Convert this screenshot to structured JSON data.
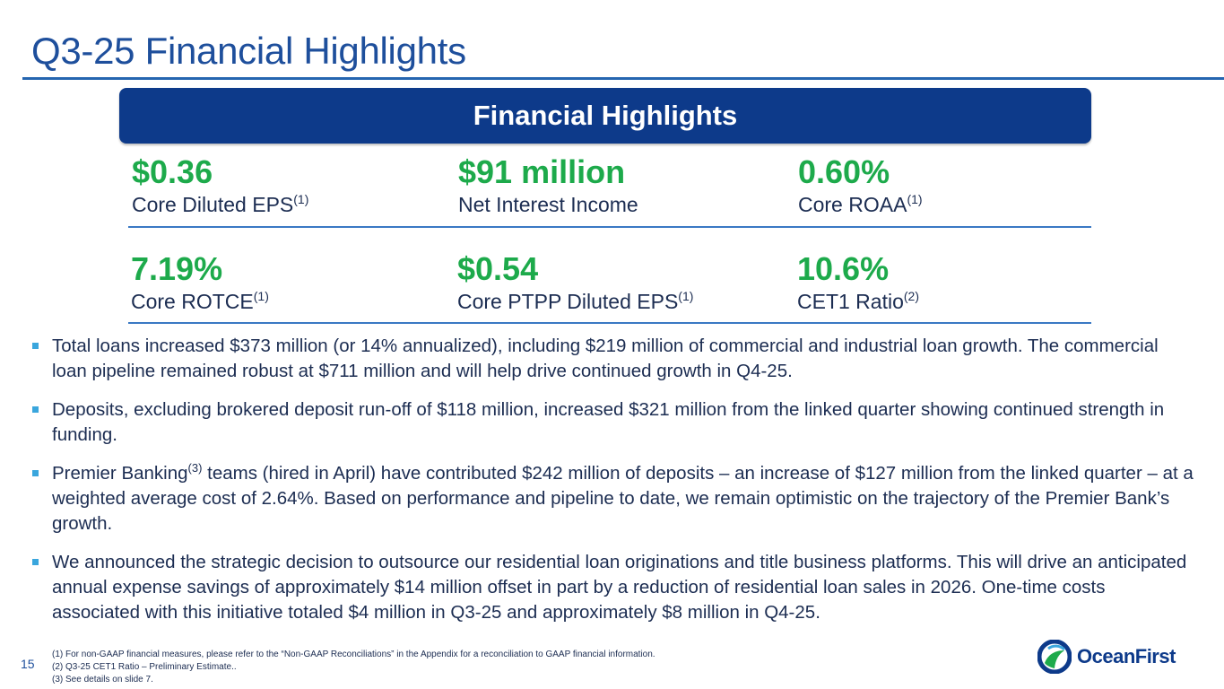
{
  "title": "Q3-25 Financial Highlights",
  "banner": "Financial Highlights",
  "metrics": [
    {
      "value": "$0.36",
      "label": "Core Diluted EPS",
      "sup": "(1)"
    },
    {
      "value": "$91 million",
      "label": "Net Interest Income",
      "sup": ""
    },
    {
      "value": "0.60%",
      "label": "Core ROAA",
      "sup": "(1)"
    },
    {
      "value": "7.19%",
      "label": "Core ROTCE",
      "sup": "(1)"
    },
    {
      "value": "$0.54",
      "label": "Core PTPP Diluted EPS",
      "sup": "(1)"
    },
    {
      "value": "10.6%",
      "label": "CET1 Ratio",
      "sup": "(2)"
    }
  ],
  "bullets": {
    "b1": "Total loans increased $373 million (or 14% annualized), including $219 million of commercial and industrial loan growth. The commercial loan pipeline remained robust at $711 million and will help drive continued growth in Q4-25.",
    "b2": "Deposits, excluding brokered deposit run-off of $118 million, increased $321 million from the linked quarter showing continued strength in funding.",
    "b3_pre": "Premier Banking",
    "b3_sup": "(3)",
    "b3_post": " teams (hired in April) have contributed $242 million of deposits – an increase of $127 million from the linked quarter – at a weighted average cost of 2.64%. Based on performance and pipeline to date, we remain optimistic on the trajectory of the Premier Bank’s growth.",
    "b4": "We announced the strategic decision to outsource our residential loan originations and title business platforms. This will drive an anticipated annual expense savings of approximately $14 million offset in part by a reduction of residential loan sales in 2026. One-time costs associated with this initiative totaled $4 million in Q3-25 and approximately $8 million in Q4-25."
  },
  "page_number": "15",
  "footnotes": [
    "(1) For non-GAAP financial measures, please refer to the “Non-GAAP Reconciliations” in the Appendix for a reconciliation to GAAP financial information.",
    "(2) Q3-25 CET1 Ratio – Preliminary Estimate..",
    "(3) See details on slide 7."
  ],
  "logo_text": "OceanFirst",
  "colors": {
    "title": "#1e4f9c",
    "banner": "#0d3a8a",
    "metric_value": "#1daa4b",
    "bullet_marker": "#3aa6dd"
  }
}
